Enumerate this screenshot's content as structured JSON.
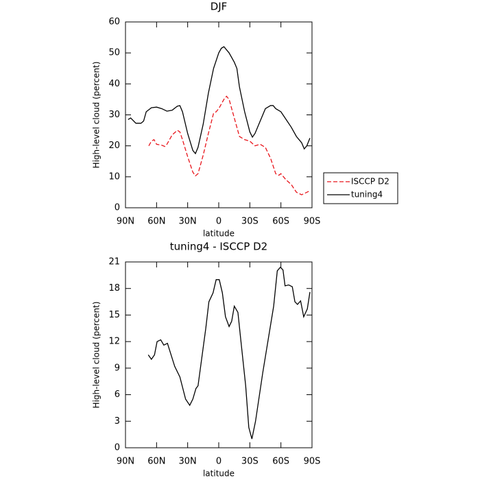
{
  "chart_data": [
    {
      "type": "line",
      "title": "DJF",
      "xlabel": "latitude",
      "ylabel": "High-level cloud (percent)",
      "xlim": [
        90,
        -90
      ],
      "ylim": [
        0,
        60
      ],
      "xticks": [
        {
          "value": 90,
          "label": "90N"
        },
        {
          "value": 60,
          "label": "60N"
        },
        {
          "value": 30,
          "label": "30N"
        },
        0,
        {
          "value": -30,
          "label": "30S"
        },
        {
          "value": -60,
          "label": "60S"
        },
        {
          "value": -90,
          "label": "90S"
        }
      ],
      "yticks": [
        0,
        10,
        20,
        30,
        40,
        50,
        60
      ],
      "legend": "right",
      "series": [
        {
          "name": "ISCCP D2",
          "color": "#e8141a",
          "dash": true,
          "x": [
            67.5,
            65,
            62.5,
            60,
            55,
            52,
            50,
            45,
            40,
            37.5,
            35,
            30,
            25,
            22.5,
            20,
            15,
            10,
            5,
            2.5,
            0,
            -5,
            -7.5,
            -10,
            -15,
            -20,
            -25,
            -30,
            -35,
            -40,
            -45,
            -50,
            -55,
            -58,
            -60,
            -65,
            -70,
            -75,
            -80,
            -85,
            -88
          ],
          "values": [
            20,
            21.5,
            22,
            20.5,
            20.2,
            19.8,
            20.5,
            23.5,
            25,
            24.5,
            22,
            16.5,
            11.5,
            10.3,
            11,
            17,
            24,
            30.5,
            31,
            32,
            35,
            36,
            35,
            29,
            23,
            22,
            21.5,
            20,
            20.5,
            19.5,
            16,
            11,
            10.5,
            11,
            9,
            7.5,
            5,
            4.2,
            5,
            5.5
          ]
        },
        {
          "name": "tuning4",
          "color": "#000000",
          "dash": false,
          "x": [
            87.5,
            85,
            80,
            75,
            72.5,
            70,
            65,
            60,
            55,
            50,
            45,
            40,
            37.5,
            35,
            30,
            25,
            22.5,
            20,
            15,
            10,
            5,
            0,
            -2.5,
            -5,
            -10,
            -15,
            -17.5,
            -20,
            -25,
            -30,
            -32.5,
            -35,
            -40,
            -45,
            -50,
            -52.5,
            -55,
            -60,
            -65,
            -70,
            -75,
            -80,
            -82.5,
            -85,
            -88
          ],
          "values": [
            28.5,
            29,
            27.3,
            27.3,
            28,
            31,
            32.3,
            32.5,
            32,
            31.2,
            31.5,
            32.8,
            33,
            31,
            24,
            18.5,
            17.5,
            19.5,
            27,
            37,
            45,
            50,
            51.5,
            52,
            50,
            47,
            45,
            39,
            31,
            24.5,
            22.8,
            24,
            28,
            32,
            33,
            33,
            32,
            31,
            28.5,
            26,
            23,
            21,
            19,
            20,
            22.5
          ]
        }
      ]
    },
    {
      "type": "line",
      "title": "tuning4 - ISCCP D2",
      "xlabel": "latitude",
      "ylabel": "High-level cloud (percent)",
      "xlim": [
        90,
        -90
      ],
      "ylim": [
        0,
        21
      ],
      "xticks": [
        {
          "value": 90,
          "label": "90N"
        },
        {
          "value": 60,
          "label": "60N"
        },
        {
          "value": 30,
          "label": "30N"
        },
        0,
        {
          "value": -30,
          "label": "30S"
        },
        {
          "value": -60,
          "label": "60S"
        },
        {
          "value": -90,
          "label": "90S"
        }
      ],
      "yticks": [
        0,
        3,
        6,
        9,
        12,
        15,
        18,
        21
      ],
      "series": [
        {
          "color": "#000000",
          "dash": false,
          "x": [
            68,
            65,
            62,
            59.5,
            56,
            53,
            49.5,
            42.5,
            37.5,
            32,
            28,
            25,
            22,
            20,
            12.5,
            9.5,
            5.5,
            2.5,
            -0.5,
            -3.5,
            -6.5,
            -10,
            -12.5,
            -15,
            -18.5,
            -21,
            -26,
            -29,
            -32,
            -35.5,
            -42.5,
            -53,
            -56.5,
            -59.5,
            -62,
            -64,
            -67.5,
            -71,
            -73.5,
            -76,
            -79,
            -82,
            -85.5,
            -88
          ],
          "values": [
            10.5,
            10,
            10.5,
            12,
            12.2,
            11.6,
            11.8,
            9.2,
            8,
            5.5,
            4.8,
            5.5,
            6.7,
            7,
            13.5,
            16.5,
            17.5,
            19,
            19,
            17.5,
            14.8,
            13.7,
            14.3,
            16,
            15.3,
            12.5,
            7,
            2.3,
            1,
            3,
            8.5,
            16,
            20,
            20.4,
            20.1,
            18.3,
            18.4,
            18.2,
            16.5,
            16.2,
            16.6,
            14.8,
            15.7,
            17.6
          ]
        }
      ]
    }
  ]
}
